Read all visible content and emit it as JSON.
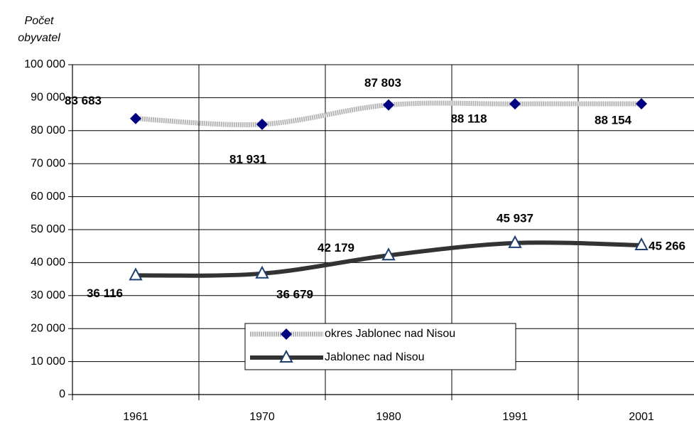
{
  "chart_data": {
    "type": "line",
    "ylabel": "Počet obyvatel",
    "categories": [
      "1961",
      "1970",
      "1980",
      "1991",
      "2001"
    ],
    "series": [
      {
        "name": "okres Jablonec nad Nisou",
        "color": "#000080",
        "line_color": "#b4b4b4",
        "marker": "diamond",
        "values": [
          83683,
          81931,
          87803,
          88118,
          88154
        ],
        "value_labels": [
          "83 683",
          "81 931",
          "87 803",
          "88 118",
          "88 154"
        ]
      },
      {
        "name": "Jablonec nad Nisou",
        "color": "#1f3f6f",
        "line_color": "#333333",
        "marker": "triangle",
        "values": [
          36116,
          36679,
          42179,
          45937,
          45266
        ],
        "value_labels": [
          "36 116",
          "36 679",
          "42 179",
          "45 937",
          "45 266"
        ]
      }
    ],
    "ylim": [
      0,
      100000
    ],
    "yticks": [
      0,
      {
        "value": 10000,
        "label": "10 000"
      },
      {
        "value": 20000,
        "label": "20 000"
      },
      {
        "value": 30000,
        "label": "30 000"
      },
      {
        "value": 40000,
        "label": "40 000"
      },
      {
        "value": 50000,
        "label": "50 000"
      },
      {
        "value": 60000,
        "label": "60 000"
      },
      {
        "value": 70000,
        "label": "70 000"
      },
      {
        "value": 80000,
        "label": "80 000"
      },
      {
        "value": 90000,
        "label": "90 000"
      },
      {
        "value": 100000,
        "label": "100 000"
      }
    ],
    "grid": true
  }
}
